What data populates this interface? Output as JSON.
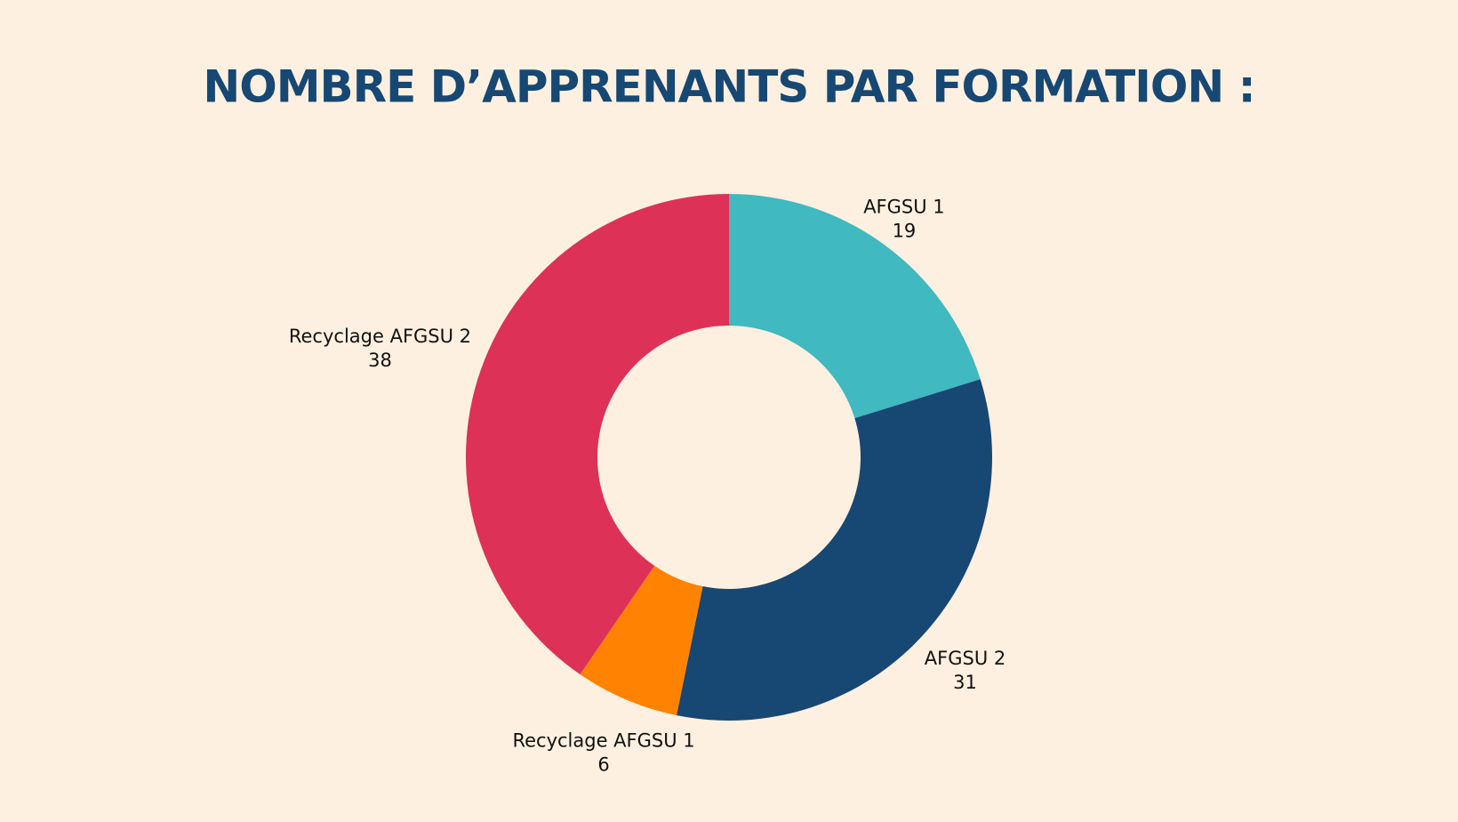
{
  "chart_data": {
    "type": "donut",
    "title": "NOMBRE D’APPRENANTS PAR FORMATION :",
    "categories": [
      "AFGSU 1",
      "AFGSU 2",
      "Recyclage AFGSU 1",
      "Recyclage AFGSU 2"
    ],
    "values": [
      19,
      31,
      6,
      38
    ],
    "colors": [
      "#40b9c0",
      "#174873",
      "#ff8200",
      "#de3157"
    ]
  }
}
